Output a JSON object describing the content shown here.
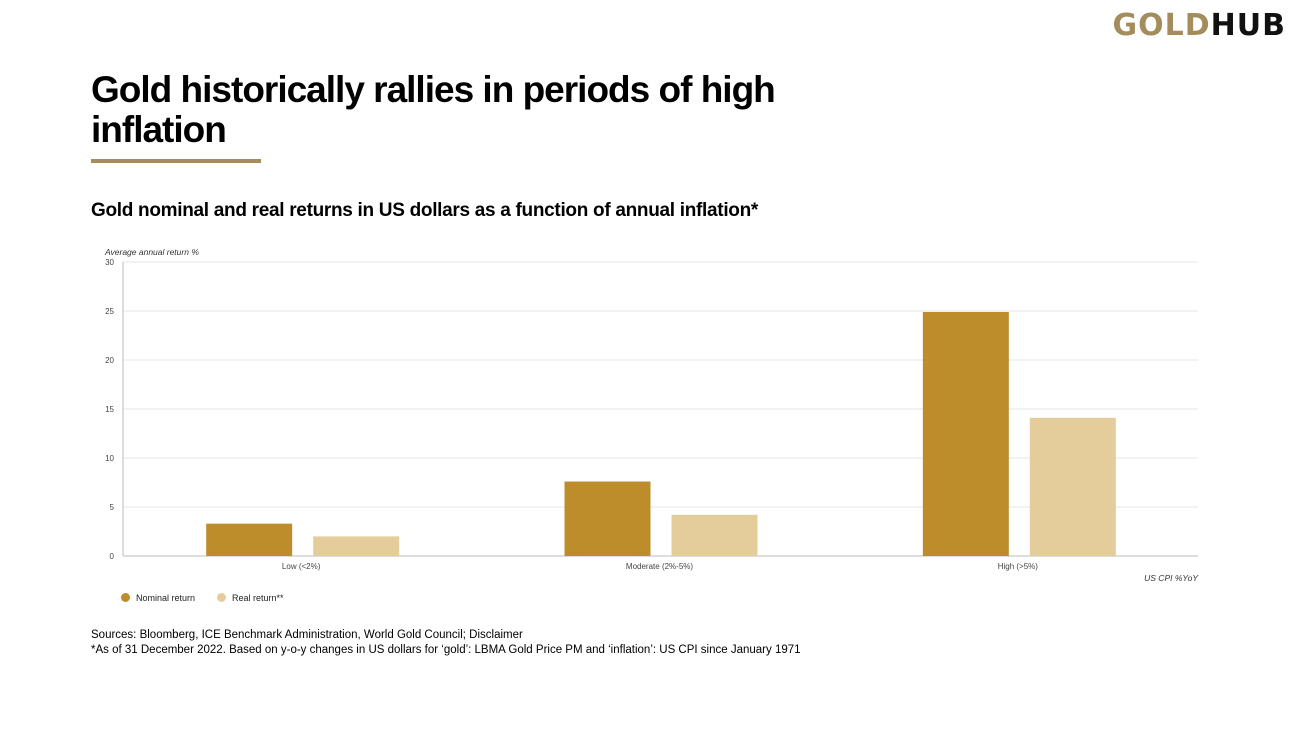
{
  "logo": {
    "part1": "GOLD",
    "part2": "HUB"
  },
  "title": "Gold historically rallies in periods of high inflation",
  "subtitle": "Gold nominal and real returns in US dollars as a function of annual inflation*",
  "colors": {
    "nominal": "#bd8d2b",
    "real": "#e5cd9b",
    "accent": "#a38d5c"
  },
  "chart_data": {
    "type": "bar",
    "categories": [
      "Low (<2%)",
      "Moderate (2%-5%)",
      "High (>5%)"
    ],
    "series": [
      {
        "name": "Nominal return",
        "values": [
          3.3,
          7.6,
          24.9
        ]
      },
      {
        "name": "Real return**",
        "values": [
          2.0,
          4.2,
          14.1
        ]
      }
    ],
    "ylabel": "Average annual return %",
    "xlabel": "US CPI %YoY",
    "ylim": [
      0,
      30
    ],
    "yticks": [
      0,
      5,
      10,
      15,
      20,
      25,
      30
    ],
    "grid": true,
    "legend": "bottom-left"
  },
  "sources": "Sources: Bloomberg, ICE Benchmark Administration, World Gold Council; Disclaimer",
  "footnote": "*As of 31 December 2022. Based on y-o-y changes in US dollars for ‘gold’: LBMA Gold Price PM and ‘inflation’: US CPI since January 1971"
}
